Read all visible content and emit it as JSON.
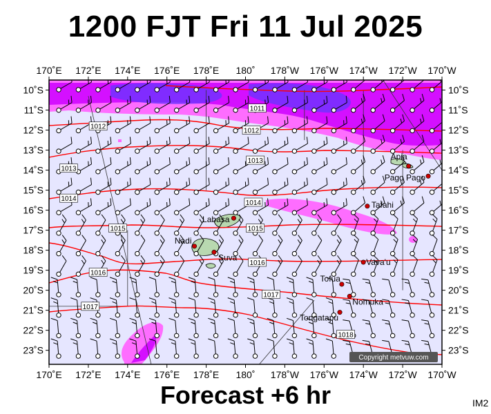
{
  "header": {
    "title": "1200 FJT Fri 11 Jul 2025"
  },
  "footer": {
    "title": "Forecast +6 hr",
    "code": "IM2"
  },
  "map": {
    "lon_labels": [
      "170˚E",
      "172˚E",
      "174˚E",
      "176˚E",
      "178˚E",
      "180˚",
      "178˚W",
      "176˚W",
      "174˚W",
      "172˚W",
      "170˚W"
    ],
    "lat_labels": [
      "10˚S",
      "11˚S",
      "12˚S",
      "13˚S",
      "14˚S",
      "15˚S",
      "16˚S",
      "17˚S",
      "18˚S",
      "19˚S",
      "20˚S",
      "21˚S",
      "22˚S",
      "23˚S"
    ],
    "isobar_labels": [
      {
        "text": "1011",
        "lon": 180.6,
        "lat": -10.9
      },
      {
        "text": "1012",
        "lon": 172.5,
        "lat": -11.8
      },
      {
        "text": "1012",
        "lon": 180.3,
        "lat": -12.0
      },
      {
        "text": "1013",
        "lon": 171.0,
        "lat": -13.9
      },
      {
        "text": "1013",
        "lon": 180.5,
        "lat": -13.5
      },
      {
        "text": "1014",
        "lon": 171.0,
        "lat": -15.4
      },
      {
        "text": "1014",
        "lon": 180.4,
        "lat": -15.6
      },
      {
        "text": "1015",
        "lon": 173.5,
        "lat": -16.9
      },
      {
        "text": "1015",
        "lon": 180.5,
        "lat": -16.9
      },
      {
        "text": "1016",
        "lon": 172.5,
        "lat": -19.1
      },
      {
        "text": "1016",
        "lon": 180.6,
        "lat": -18.6
      },
      {
        "text": "1017",
        "lon": 181.3,
        "lat": -20.2
      },
      {
        "text": "1017",
        "lon": 172.1,
        "lat": -20.8
      },
      {
        "text": "1018",
        "lon": 185.1,
        "lat": -22.2
      }
    ],
    "places": [
      {
        "name": "Apia",
        "lon": 188.3,
        "lat": -13.8,
        "anchor": "end",
        "dx": -2,
        "dy": -10
      },
      {
        "name": "Pago Pago",
        "lon": 189.3,
        "lat": -14.3,
        "anchor": "end",
        "dx": -4,
        "dy": 6
      },
      {
        "name": "Tafahi",
        "lon": 186.2,
        "lat": -15.8,
        "anchor": "start",
        "dx": 6,
        "dy": 2
      },
      {
        "name": "Labasa",
        "lon": 179.4,
        "lat": -16.4,
        "anchor": "end",
        "dx": -6,
        "dy": 6
      },
      {
        "name": "Nadi",
        "lon": 177.4,
        "lat": -17.8,
        "anchor": "end",
        "dx": -4,
        "dy": -4
      },
      {
        "name": "Suva",
        "lon": 178.4,
        "lat": -18.1,
        "anchor": "start",
        "dx": 6,
        "dy": 12
      },
      {
        "name": "Vava'u",
        "lon": 186.0,
        "lat": -18.6,
        "anchor": "start",
        "dx": 4,
        "dy": 4
      },
      {
        "name": "Tofua",
        "lon": 184.9,
        "lat": -19.7,
        "anchor": "end",
        "dx": -2,
        "dy": -4
      },
      {
        "name": "Nomuka",
        "lon": 185.3,
        "lat": -20.3,
        "anchor": "start",
        "dx": 4,
        "dy": 12
      },
      {
        "name": "Tongatapu",
        "lon": 184.8,
        "lat": -21.1,
        "anchor": "end",
        "dx": -2,
        "dy": 12
      }
    ],
    "copyright": "Copyright metvuw.com",
    "colors": {
      "background": "#e6e6ff",
      "isobar": "#ff0000",
      "rain_light": "#ff66ff",
      "rain_heavy": "#cc00ff",
      "rain_deep": "#6a33ff",
      "land": "#b8d8b0",
      "place_dot": "#cc0000"
    }
  }
}
